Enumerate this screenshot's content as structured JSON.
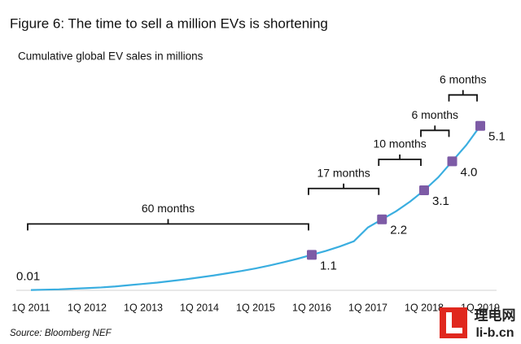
{
  "chart_data": {
    "type": "line",
    "title": "Figure 6: The time to sell a million EVs is shortening",
    "subtitle": "Cumulative global EV sales in millions",
    "source": "Source: Bloomberg NEF",
    "watermark": [
      "理电网",
      "li-b.cn"
    ],
    "categories": [
      "1Q 2011",
      null,
      null,
      null,
      "1Q 2012",
      null,
      null,
      null,
      "1Q 2013",
      null,
      null,
      null,
      "1Q 2014",
      null,
      null,
      null,
      "1Q 2015",
      null,
      null,
      null,
      "1Q 2016",
      null,
      null,
      null,
      "1Q 2017",
      null,
      null,
      null,
      "1Q 2018",
      null,
      null,
      null,
      "1Q 2019"
    ],
    "series": [
      {
        "name": "Cumulative global EV sales",
        "color": "#3aaee0",
        "values": [
          0.01,
          0.02,
          0.03,
          0.05,
          0.07,
          0.09,
          0.12,
          0.16,
          0.2,
          0.24,
          0.29,
          0.34,
          0.4,
          0.46,
          0.53,
          0.6,
          0.68,
          0.77,
          0.87,
          0.98,
          1.1,
          1.22,
          1.36,
          1.52,
          1.95,
          2.2,
          2.45,
          2.75,
          3.1,
          3.5,
          4.0,
          4.5,
          5.1
        ],
        "value_labels": [
          "0.01",
          null,
          null,
          null,
          null,
          null,
          null,
          null,
          null,
          null,
          null,
          null,
          null,
          null,
          null,
          null,
          null,
          null,
          null,
          null,
          "1.1",
          null,
          null,
          null,
          null,
          "2.2",
          null,
          null,
          "3.1",
          null,
          "4.0",
          null,
          "5.1"
        ]
      }
    ],
    "markers": [
      20,
      25,
      28,
      30,
      32
    ],
    "marker_color": "#7d5ba6",
    "annotations": [
      {
        "text": "60 months",
        "from": 0,
        "to": 20
      },
      {
        "text": "17 months",
        "from": 20,
        "to": 25
      },
      {
        "text": "10 months",
        "from": 25,
        "to": 28
      },
      {
        "text": "6 months",
        "from": 28,
        "to": 30
      },
      {
        "text": "6 months",
        "from": 30,
        "to": 32
      }
    ],
    "ylim": [
      0,
      6
    ]
  }
}
